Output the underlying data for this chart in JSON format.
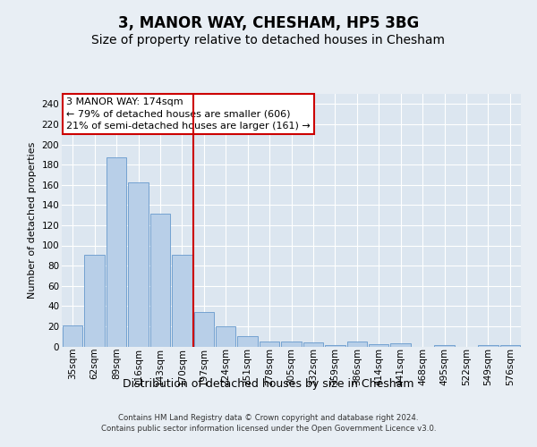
{
  "title": "3, MANOR WAY, CHESHAM, HP5 3BG",
  "subtitle": "Size of property relative to detached houses in Chesham",
  "xlabel": "Distribution of detached houses by size in Chesham",
  "ylabel": "Number of detached properties",
  "categories": [
    "35sqm",
    "62sqm",
    "89sqm",
    "116sqm",
    "143sqm",
    "170sqm",
    "197sqm",
    "224sqm",
    "251sqm",
    "278sqm",
    "305sqm",
    "332sqm",
    "359sqm",
    "386sqm",
    "414sqm",
    "441sqm",
    "468sqm",
    "495sqm",
    "522sqm",
    "549sqm",
    "576sqm"
  ],
  "values": [
    21,
    91,
    187,
    162,
    131,
    91,
    34,
    20,
    10,
    5,
    5,
    4,
    1,
    5,
    2,
    3,
    0,
    1,
    0,
    1,
    1
  ],
  "bar_color": "#b8cfe8",
  "bar_edge_color": "#6699cc",
  "annotation_text": "3 MANOR WAY: 174sqm\n← 79% of detached houses are smaller (606)\n21% of semi-detached houses are larger (161) →",
  "annotation_box_color": "#ffffff",
  "annotation_box_edge": "#cc0000",
  "vline_color": "#cc0000",
  "vline_x": 5.5,
  "ylim": [
    0,
    250
  ],
  "yticks": [
    0,
    20,
    40,
    60,
    80,
    100,
    120,
    140,
    160,
    180,
    200,
    220,
    240
  ],
  "bg_color": "#e8eef4",
  "plot_bg_color": "#dce6f0",
  "footer": "Contains HM Land Registry data © Crown copyright and database right 2024.\nContains public sector information licensed under the Open Government Licence v3.0.",
  "title_fontsize": 12,
  "subtitle_fontsize": 10,
  "xlabel_fontsize": 9,
  "ylabel_fontsize": 8,
  "tick_fontsize": 7.5,
  "annotation_fontsize": 8
}
